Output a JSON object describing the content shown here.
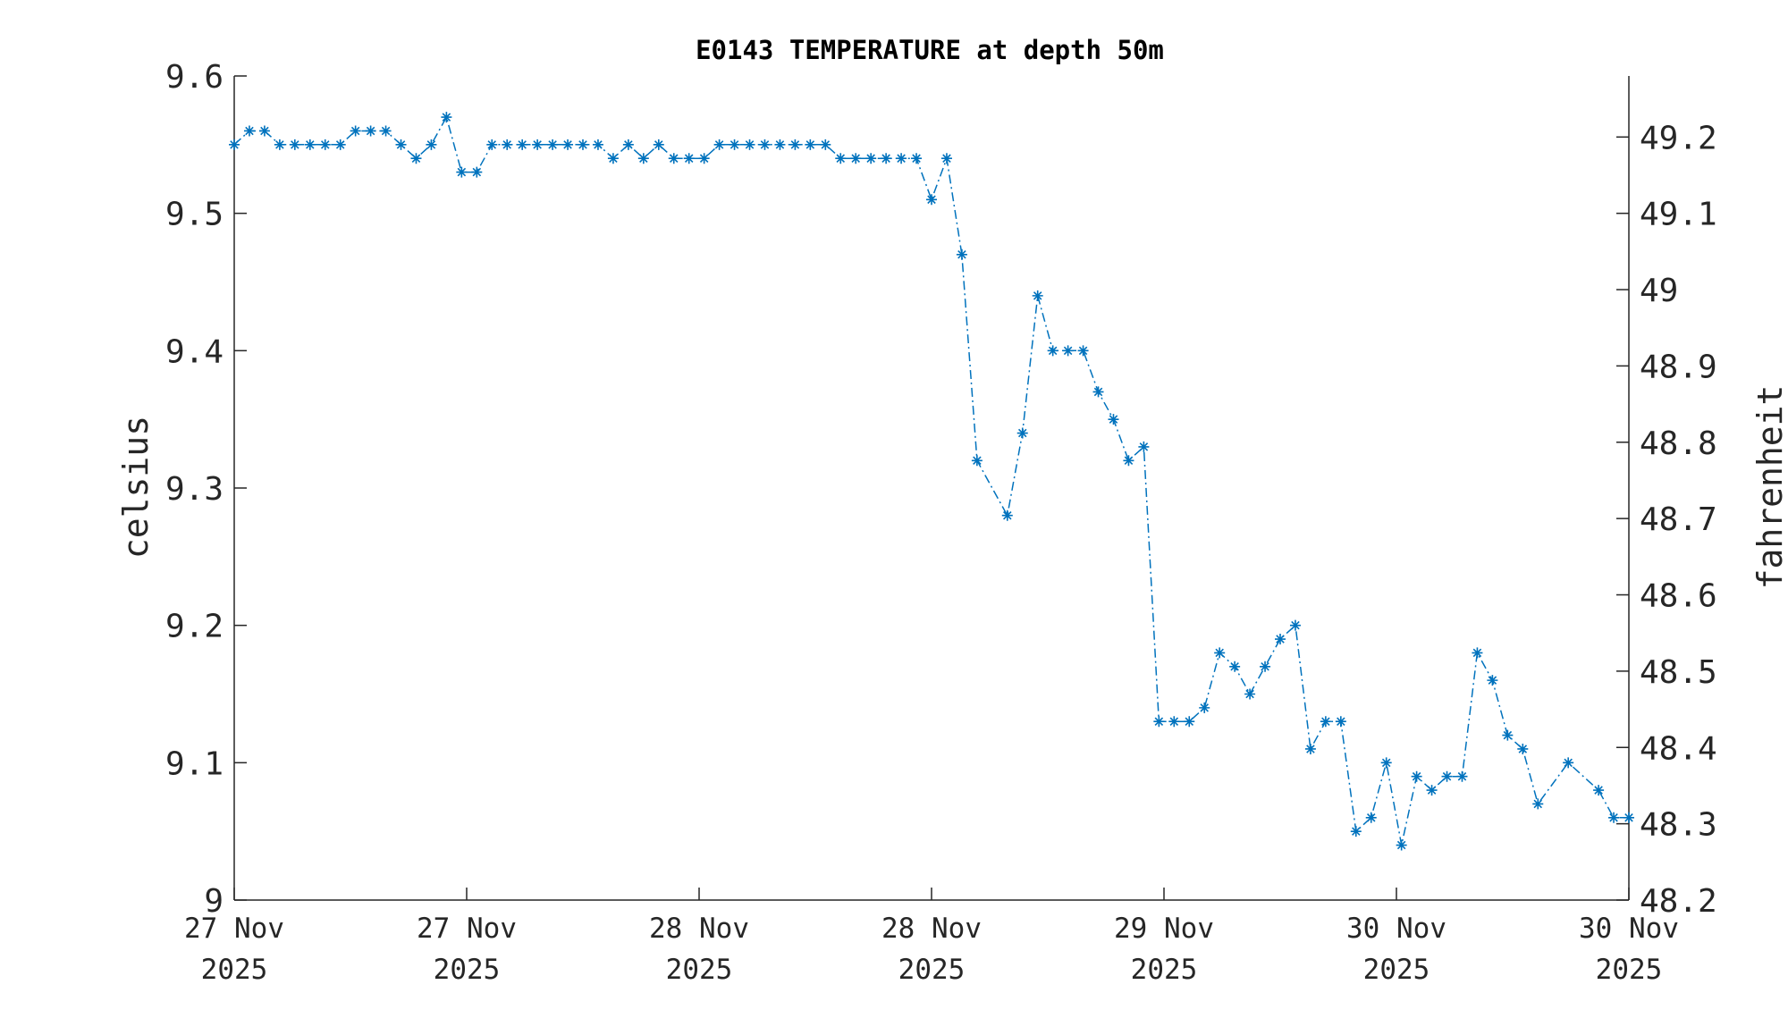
{
  "chart_data": {
    "type": "line",
    "title": "E0143 TEMPERATURE at depth 50m",
    "ylabel": "celsius",
    "y2label": "fahrenheit",
    "ylim": [
      9.0,
      9.6
    ],
    "y2lim": [
      48.2,
      49.28
    ],
    "yticks": [
      "9",
      "9.1",
      "9.2",
      "9.3",
      "9.4",
      "9.5",
      "9.6"
    ],
    "y2ticks": [
      "48.2",
      "48.3",
      "48.4",
      "48.5",
      "48.6",
      "48.7",
      "48.8",
      "48.9",
      "49",
      "49.1",
      "49.2"
    ],
    "xticks": [
      {
        "line1": "27 Nov",
        "line2": "2025"
      },
      {
        "line1": "27 Nov",
        "line2": "2025"
      },
      {
        "line1": "28 Nov",
        "line2": "2025"
      },
      {
        "line1": "28 Nov",
        "line2": "2025"
      },
      {
        "line1": "29 Nov",
        "line2": "2025"
      },
      {
        "line1": "30 Nov",
        "line2": "2025"
      },
      {
        "line1": "30 Nov",
        "line2": "2025"
      }
    ],
    "grid": false,
    "legend": "none",
    "series_color": "#0072bd",
    "marker": "asterisk",
    "line_style": "dash-dot",
    "series": [
      {
        "values": [
          9.55,
          9.56,
          9.56,
          9.55,
          9.55,
          9.55,
          9.55,
          9.55,
          9.56,
          9.56,
          9.56,
          9.55,
          9.54,
          9.55,
          9.57,
          9.53,
          9.53,
          9.55,
          9.55,
          9.55,
          9.55,
          9.55,
          9.55,
          9.55,
          9.55,
          9.54,
          9.55,
          9.54,
          9.55,
          9.54,
          9.54,
          9.54,
          9.55,
          9.55,
          9.55,
          9.55,
          9.55,
          9.55,
          9.55,
          9.55,
          9.54,
          9.54,
          9.54,
          9.54,
          9.54,
          9.54,
          9.51,
          9.54,
          9.47,
          9.32,
          null,
          9.28,
          9.34,
          9.44,
          9.4,
          9.4,
          9.4,
          9.37,
          9.35,
          9.32,
          9.33,
          9.13,
          9.13,
          9.13,
          9.14,
          9.18,
          9.17,
          9.15,
          9.17,
          9.19,
          9.2,
          9.11,
          9.13,
          9.13,
          9.05,
          9.06,
          9.1,
          9.04,
          9.09,
          9.08,
          9.09,
          9.09,
          9.18,
          9.16,
          9.12,
          9.11,
          9.07,
          null,
          9.1,
          null,
          9.08,
          9.06,
          9.06
        ]
      }
    ]
  }
}
